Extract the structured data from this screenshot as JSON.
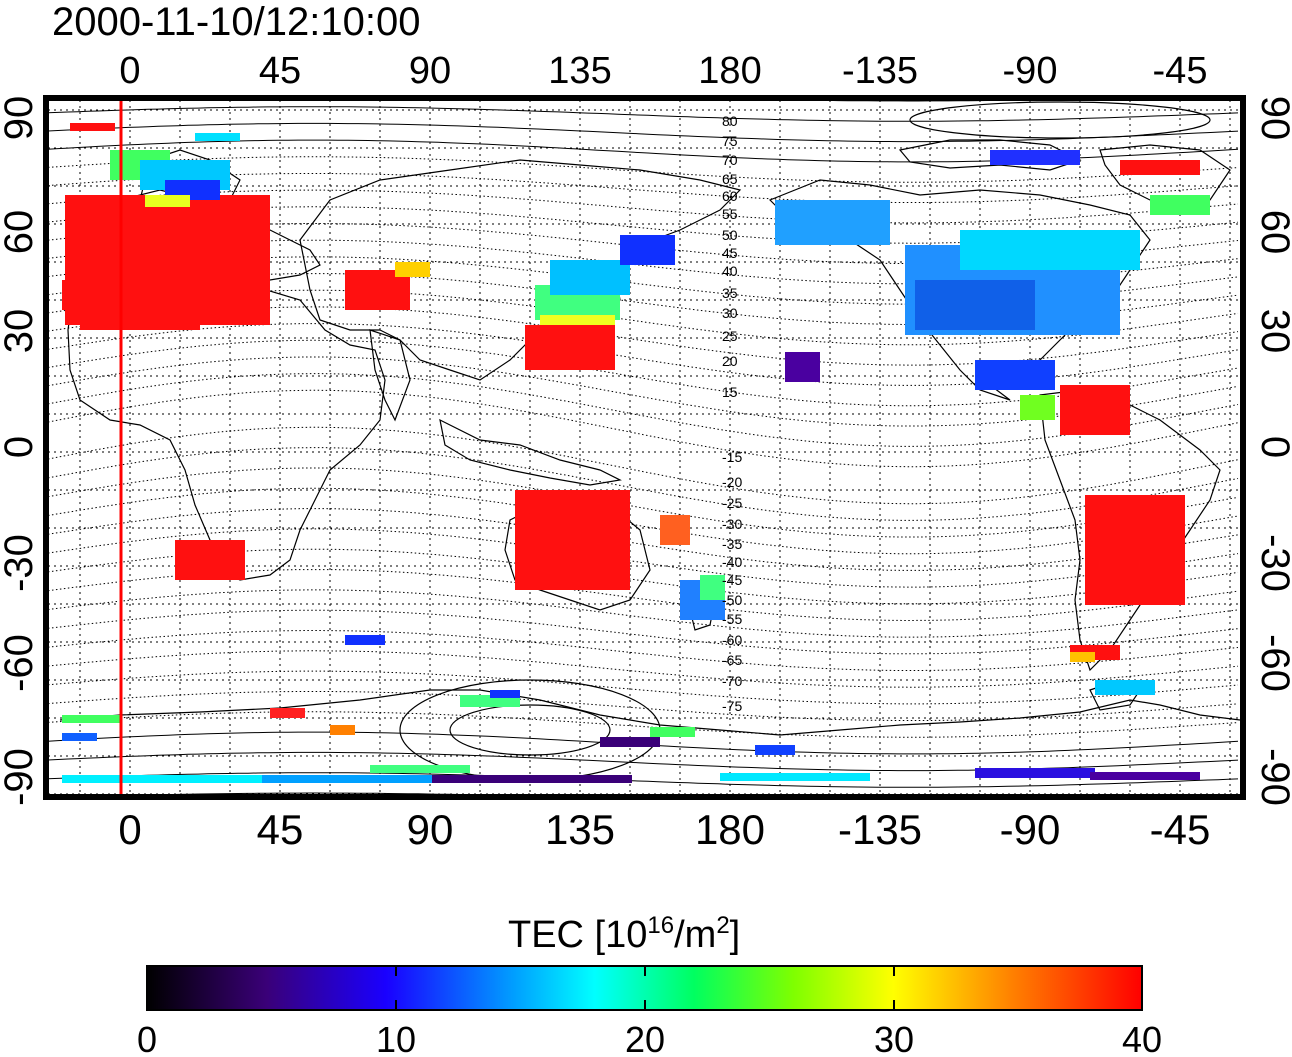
{
  "timestamp": "2000-11-10/12:10:00",
  "top_axis_ticks": [
    "0",
    "45",
    "90",
    "135",
    "180",
    "-135",
    "-90",
    "-45"
  ],
  "bottom_axis_ticks": [
    "0",
    "45",
    "90",
    "135",
    "180",
    "-135",
    "-90",
    "-45"
  ],
  "left_axis_ticks": [
    "90",
    "60",
    "30",
    "0",
    "-30",
    "-60",
    "-90"
  ],
  "right_axis_ticks": [
    "90",
    "60",
    "30",
    "0",
    "-30",
    "-60",
    "-90"
  ],
  "contour_labels": [
    "80",
    "75",
    "70",
    "65",
    "60",
    "55",
    "50",
    "45",
    "40",
    "35",
    "30",
    "25",
    "20",
    "15",
    "-15",
    "-20",
    "-25",
    "-30",
    "-35",
    "-40",
    "-45",
    "-50",
    "-55",
    "-60",
    "-65",
    "-70",
    "-75"
  ],
  "colorbar": {
    "title_prefix": "TEC  [10",
    "title_exp1": "16",
    "title_mid": "/m",
    "title_exp2": "2",
    "title_suffix": "]",
    "ticks": [
      "0",
      "10",
      "20",
      "30",
      "40"
    ],
    "range": [
      0,
      40
    ],
    "colors": [
      "#000000",
      "#3a0078",
      "#1a00ff",
      "#00a0ff",
      "#00ffff",
      "#00ff60",
      "#7fff00",
      "#ffff00",
      "#ff8000",
      "#ff0000"
    ]
  },
  "map": {
    "projection": "equirectangular",
    "lon_center": 180,
    "lat_range": [
      -90,
      90
    ],
    "marker_longitude": -2,
    "marker_color": "#ff0000"
  }
}
